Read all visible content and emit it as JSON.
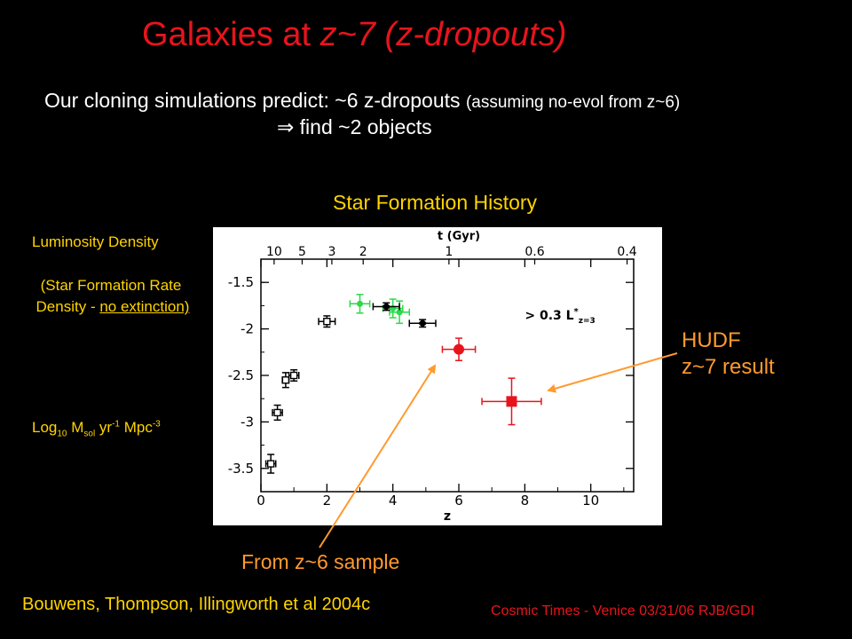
{
  "slide": {
    "title_main": "Galaxies at ",
    "title_italic": "z~7 (z-dropouts)",
    "prediction_main": "Our cloning simulations predict:  ~6 z-dropouts ",
    "prediction_note": "(assuming no-evol from z~6)",
    "find_line": "⇒ find ~2 objects",
    "chart_heading": "Star Formation History",
    "ylabel_line1": "Luminosity Density",
    "ylabel_line2": "(Star Formation Rate",
    "ylabel_line3_a": "Density - ",
    "ylabel_line3_b": "no extinction)",
    "units_log": "Log",
    "units_10": "10",
    "units_m": " M",
    "units_sol": "sol",
    "units_yr": " yr",
    "units_m1": "-1",
    "units_mpc": " Mpc",
    "units_m3": "-3",
    "hudf_line1": "HUDF",
    "hudf_line2": "z~7 result",
    "from_z6": "From z~6 sample",
    "citation": "Bouwens, Thompson, Illingworth et al 2004c",
    "footer": "Cosmic Times - Venice 03/31/06  RJB/GDI"
  },
  "chart_data": {
    "type": "scatter",
    "xlabel": "z",
    "top_axis_label": "t (Gyr)",
    "xlim": [
      0,
      11.3
    ],
    "ylim": [
      -3.75,
      -1.25
    ],
    "x_ticks": [
      "0",
      "2",
      "4",
      "6",
      "8",
      "10"
    ],
    "y_ticks": [
      "-1.5",
      "-2",
      "-2.5",
      "-3",
      "-3.5"
    ],
    "top_ticks": [
      {
        "label": "10",
        "z": 0.4
      },
      {
        "label": "5",
        "z": 1.25
      },
      {
        "label": "3",
        "z": 2.15
      },
      {
        "label": "2",
        "z": 3.1
      },
      {
        "label": "1",
        "z": 5.7
      },
      {
        "label": "0.6",
        "z": 8.3
      },
      {
        "label": "0.4",
        "z": 11.1
      }
    ],
    "annotation": "> 0.3 L*z=3",
    "annotation_main": "> 0.3 L",
    "annotation_sup": "*",
    "annotation_sub": "z=3",
    "series": [
      {
        "color": "#000000",
        "marker": "open-square",
        "points": [
          {
            "x": 0.3,
            "y": -3.45,
            "xerr": 0.15,
            "yerr": 0.1
          },
          {
            "x": 0.5,
            "y": -2.9,
            "xerr": 0.15,
            "yerr": 0.08
          },
          {
            "x": 0.75,
            "y": -2.55,
            "xerr": 0.1,
            "yerr": 0.08
          },
          {
            "x": 1.0,
            "y": -2.5,
            "xerr": 0.15,
            "yerr": 0.06
          },
          {
            "x": 2.0,
            "y": -1.92,
            "xerr": 0.25,
            "yerr": 0.06
          }
        ]
      },
      {
        "color": "#2bd94a",
        "marker": "star",
        "points": [
          {
            "x": 3.0,
            "y": -1.73,
            "xerr": 0.3,
            "yerr": 0.1
          },
          {
            "x": 4.0,
            "y": -1.78,
            "xerr": 0.3,
            "yerr": 0.1
          },
          {
            "x": 4.2,
            "y": -1.82,
            "xerr": 0.3,
            "yerr": 0.12
          }
        ]
      },
      {
        "color": "#000000",
        "marker": "diamond",
        "points": [
          {
            "x": 3.8,
            "y": -1.76,
            "xerr": 0.4,
            "yerr": 0.04
          },
          {
            "x": 4.9,
            "y": -1.94,
            "xerr": 0.4,
            "yerr": 0.04
          }
        ]
      },
      {
        "color": "#e8141c",
        "marker": "circle",
        "points": [
          {
            "x": 6.0,
            "y": -2.22,
            "xerr": 0.5,
            "yerr": 0.12
          }
        ]
      },
      {
        "color": "#e8141c",
        "marker": "square",
        "points": [
          {
            "x": 7.6,
            "y": -2.78,
            "xerr": 0.9,
            "yerr": 0.25
          }
        ]
      }
    ]
  }
}
